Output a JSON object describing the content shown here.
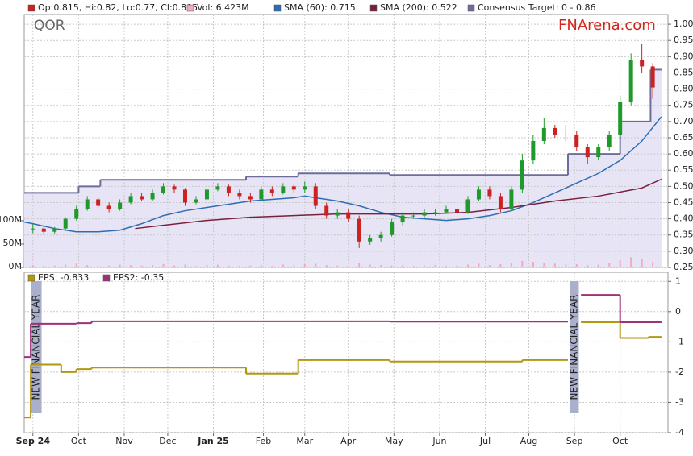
{
  "chart_data": [
    {
      "type": "candlestick",
      "title": "QOR",
      "brand": "FNArena.com",
      "ylim": [
        0.25,
        1.03
      ],
      "yticks": [
        0.25,
        {
          "value": 0.3,
          "label": "0.30"
        },
        0.35,
        {
          "value": 0.4,
          "label": "0.40"
        },
        0.45,
        {
          "value": 0.5,
          "label": "0.50"
        },
        0.55,
        {
          "value": 0.6,
          "label": "0.60"
        },
        0.65,
        {
          "value": 0.7,
          "label": "0.70"
        },
        0.75,
        {
          "value": 0.8,
          "label": "0.80"
        },
        0.85,
        {
          "value": 0.9,
          "label": "0.90"
        },
        0.95,
        {
          "value": 1.0,
          "label": "1.00"
        }
      ],
      "y2lim": [
        0,
        541
      ],
      "y2ticks": [
        {
          "value": 0,
          "label": "0M"
        },
        {
          "value": 50,
          "label": "50M"
        },
        {
          "value": 100,
          "label": "100M"
        }
      ],
      "grid": true,
      "series": [
        {
          "type": "candles",
          "name": "Op:0.815, Hi:0.82, Lo:0.77, Cl:0.805",
          "color": "#cc2222",
          "up_color": "#1f9a2a",
          "x": [
            0,
            5,
            10,
            15,
            20,
            25,
            30,
            35,
            40,
            45,
            50,
            55,
            60,
            65,
            70,
            75,
            80,
            85,
            90,
            95,
            100,
            105,
            110,
            115,
            120,
            125,
            130,
            135,
            140,
            145,
            150,
            155,
            160,
            165,
            170,
            175,
            180,
            185,
            190,
            195,
            200,
            205,
            210,
            215,
            220,
            225,
            230,
            235,
            240,
            245,
            250,
            255,
            260,
            265,
            270,
            275,
            280,
            285
          ],
          "open": [
            0.37,
            0.37,
            0.36,
            0.37,
            0.4,
            0.43,
            0.46,
            0.44,
            0.43,
            0.45,
            0.47,
            0.46,
            0.48,
            0.5,
            0.49,
            0.45,
            0.46,
            0.49,
            0.5,
            0.48,
            0.47,
            0.46,
            0.49,
            0.48,
            0.5,
            0.49,
            0.5,
            0.44,
            0.41,
            0.42,
            0.4,
            0.33,
            0.34,
            0.35,
            0.39,
            0.41,
            0.41,
            0.42,
            0.42,
            0.43,
            0.42,
            0.46,
            0.49,
            0.47,
            0.43,
            0.49,
            0.58,
            0.64,
            0.68,
            0.66,
            0.66,
            0.62,
            0.59,
            0.62,
            0.66,
            0.76,
            0.89,
            0.87
          ],
          "high": [
            0.385,
            0.38,
            0.375,
            0.405,
            0.44,
            0.47,
            0.465,
            0.45,
            0.46,
            0.48,
            0.48,
            0.49,
            0.51,
            0.505,
            0.495,
            0.47,
            0.5,
            0.51,
            0.505,
            0.49,
            0.48,
            0.5,
            0.5,
            0.51,
            0.505,
            0.515,
            0.51,
            0.45,
            0.43,
            0.43,
            0.41,
            0.35,
            0.36,
            0.4,
            0.42,
            0.42,
            0.43,
            0.43,
            0.44,
            0.44,
            0.47,
            0.5,
            0.5,
            0.48,
            0.5,
            0.6,
            0.66,
            0.71,
            0.69,
            0.69,
            0.67,
            0.63,
            0.63,
            0.67,
            0.78,
            0.91,
            0.94,
            0.88
          ],
          "low": [
            0.355,
            0.35,
            0.355,
            0.365,
            0.395,
            0.425,
            0.435,
            0.42,
            0.425,
            0.445,
            0.455,
            0.455,
            0.475,
            0.48,
            0.44,
            0.445,
            0.455,
            0.485,
            0.47,
            0.46,
            0.45,
            0.455,
            0.47,
            0.475,
            0.48,
            0.48,
            0.43,
            0.4,
            0.4,
            0.39,
            0.31,
            0.32,
            0.33,
            0.345,
            0.38,
            0.4,
            0.405,
            0.41,
            0.415,
            0.41,
            0.415,
            0.455,
            0.46,
            0.42,
            0.425,
            0.48,
            0.57,
            0.63,
            0.65,
            0.64,
            0.61,
            0.57,
            0.58,
            0.61,
            0.65,
            0.75,
            0.85,
            0.77
          ],
          "close": [
            0.37,
            0.36,
            0.37,
            0.4,
            0.43,
            0.46,
            0.44,
            0.43,
            0.45,
            0.47,
            0.46,
            0.48,
            0.5,
            0.49,
            0.45,
            0.46,
            0.49,
            0.5,
            0.48,
            0.47,
            0.46,
            0.49,
            0.48,
            0.5,
            0.49,
            0.5,
            0.44,
            0.41,
            0.42,
            0.4,
            0.33,
            0.34,
            0.35,
            0.39,
            0.41,
            0.41,
            0.42,
            0.42,
            0.43,
            0.42,
            0.46,
            0.49,
            0.47,
            0.43,
            0.49,
            0.58,
            0.64,
            0.68,
            0.66,
            0.66,
            0.62,
            0.59,
            0.62,
            0.66,
            0.76,
            0.89,
            0.87,
            0.805
          ]
        },
        {
          "type": "bar",
          "name": "Vol: 6.423M",
          "color": "#f2a9bd",
          "axis": "y2",
          "x": [
            0,
            5,
            10,
            15,
            20,
            25,
            30,
            35,
            40,
            45,
            50,
            55,
            60,
            65,
            70,
            75,
            80,
            85,
            90,
            95,
            100,
            105,
            110,
            115,
            120,
            125,
            130,
            135,
            140,
            145,
            150,
            155,
            160,
            165,
            170,
            175,
            180,
            185,
            190,
            195,
            200,
            205,
            210,
            215,
            220,
            225,
            230,
            235,
            240,
            245,
            250,
            255,
            260,
            265,
            270,
            275,
            280,
            285
          ],
          "values": [
            5,
            3,
            4,
            6,
            8,
            5,
            3,
            4,
            6,
            5,
            4,
            5,
            7,
            4,
            6,
            3,
            5,
            6,
            4,
            3,
            4,
            5,
            3,
            6,
            4,
            7,
            8,
            5,
            4,
            3,
            9,
            6,
            5,
            4,
            5,
            3,
            4,
            5,
            3,
            4,
            6,
            8,
            5,
            7,
            9,
            14,
            12,
            10,
            8,
            6,
            7,
            5,
            6,
            9,
            15,
            22,
            18,
            12
          ]
        },
        {
          "type": "line",
          "name": "SMA (60): 0.715",
          "color": "#2f6db3",
          "x": [
            -4,
            0,
            10,
            20,
            30,
            40,
            50,
            60,
            70,
            80,
            90,
            100,
            110,
            120,
            125,
            130,
            140,
            150,
            160,
            170,
            180,
            190,
            200,
            210,
            220,
            230,
            240,
            250,
            260,
            270,
            280,
            289
          ],
          "values": [
            0.39,
            0.385,
            0.37,
            0.36,
            0.36,
            0.365,
            0.385,
            0.41,
            0.425,
            0.435,
            0.445,
            0.455,
            0.46,
            0.465,
            0.47,
            0.465,
            0.455,
            0.44,
            0.42,
            0.405,
            0.4,
            0.395,
            0.4,
            0.41,
            0.425,
            0.45,
            0.48,
            0.51,
            0.54,
            0.58,
            0.64,
            0.715
          ]
        },
        {
          "type": "line",
          "name": "SMA (200): 0.522",
          "color": "#7a1f3d",
          "x": [
            47,
            60,
            80,
            100,
            120,
            140,
            160,
            180,
            200,
            220,
            240,
            260,
            280,
            289
          ],
          "values": [
            0.37,
            0.38,
            0.395,
            0.405,
            0.41,
            0.415,
            0.415,
            0.415,
            0.42,
            0.435,
            0.455,
            0.47,
            0.495,
            0.522
          ]
        },
        {
          "type": "step-area",
          "name": "Consensus Target: 0 - 0.86",
          "color": "#6d6d9c",
          "fill": "#e7e5f5",
          "x": [
            -4,
            21,
            31,
            98,
            122,
            164,
            246,
            270,
            284,
            289
          ],
          "values": [
            0.48,
            0.5,
            0.52,
            0.53,
            0.54,
            0.535,
            0.6,
            0.7,
            0.86,
            0.86
          ]
        }
      ]
    },
    {
      "type": "step",
      "xlim": [
        -4,
        292
      ],
      "xticks": [
        {
          "value": 0,
          "label": "Sep 24"
        },
        {
          "value": 21,
          "label": "Oct"
        },
        {
          "value": 42,
          "label": "Nov"
        },
        {
          "value": 62,
          "label": "Dec"
        },
        {
          "value": 83,
          "label": "Jan 25"
        },
        {
          "value": 106,
          "label": "Feb"
        },
        {
          "value": 125,
          "label": "Mar"
        },
        {
          "value": 145,
          "label": "Apr"
        },
        {
          "value": 166,
          "label": "May"
        },
        {
          "value": 187,
          "label": "Jun"
        },
        {
          "value": 208,
          "label": "Jul"
        },
        {
          "value": 228,
          "label": "Aug"
        },
        {
          "value": 249,
          "label": "Sep"
        },
        {
          "value": 270,
          "label": "Oct"
        }
      ],
      "ylim": [
        -4,
        1.3
      ],
      "yticks": [
        1,
        0,
        -1,
        -2,
        -3,
        -4
      ],
      "grid": true,
      "annotations": [
        {
          "text": "NEW FINANCIAL YEAR",
          "x": [
            -1,
            4
          ]
        },
        {
          "text": "NEW FINANCIAL YEAR",
          "x": [
            247,
            251
          ]
        }
      ],
      "series": [
        {
          "type": "step",
          "name": "EPS: -0.833",
          "color": "#b3970f",
          "x": [
            -4,
            -1,
            13,
            20,
            27,
            98,
            122,
            164,
            225,
            246,
            248,
            252,
            270,
            283,
            289
          ],
          "values": [
            -3.5,
            -1.75,
            -2.0,
            -1.9,
            -1.85,
            -2.05,
            -1.6,
            -1.65,
            -1.6,
            -1.6,
            null,
            -0.35,
            -0.87,
            -0.833,
            -0.833
          ]
        },
        {
          "type": "step",
          "name": "EPS2: -0.35",
          "color": "#a0307a",
          "x": [
            -4,
            -1,
            20,
            27,
            164,
            246,
            248,
            252,
            270,
            289
          ],
          "values": [
            -1.5,
            -0.4,
            -0.38,
            -0.32,
            -0.33,
            -0.33,
            null,
            0.55,
            -0.35,
            -0.35
          ]
        }
      ]
    }
  ]
}
